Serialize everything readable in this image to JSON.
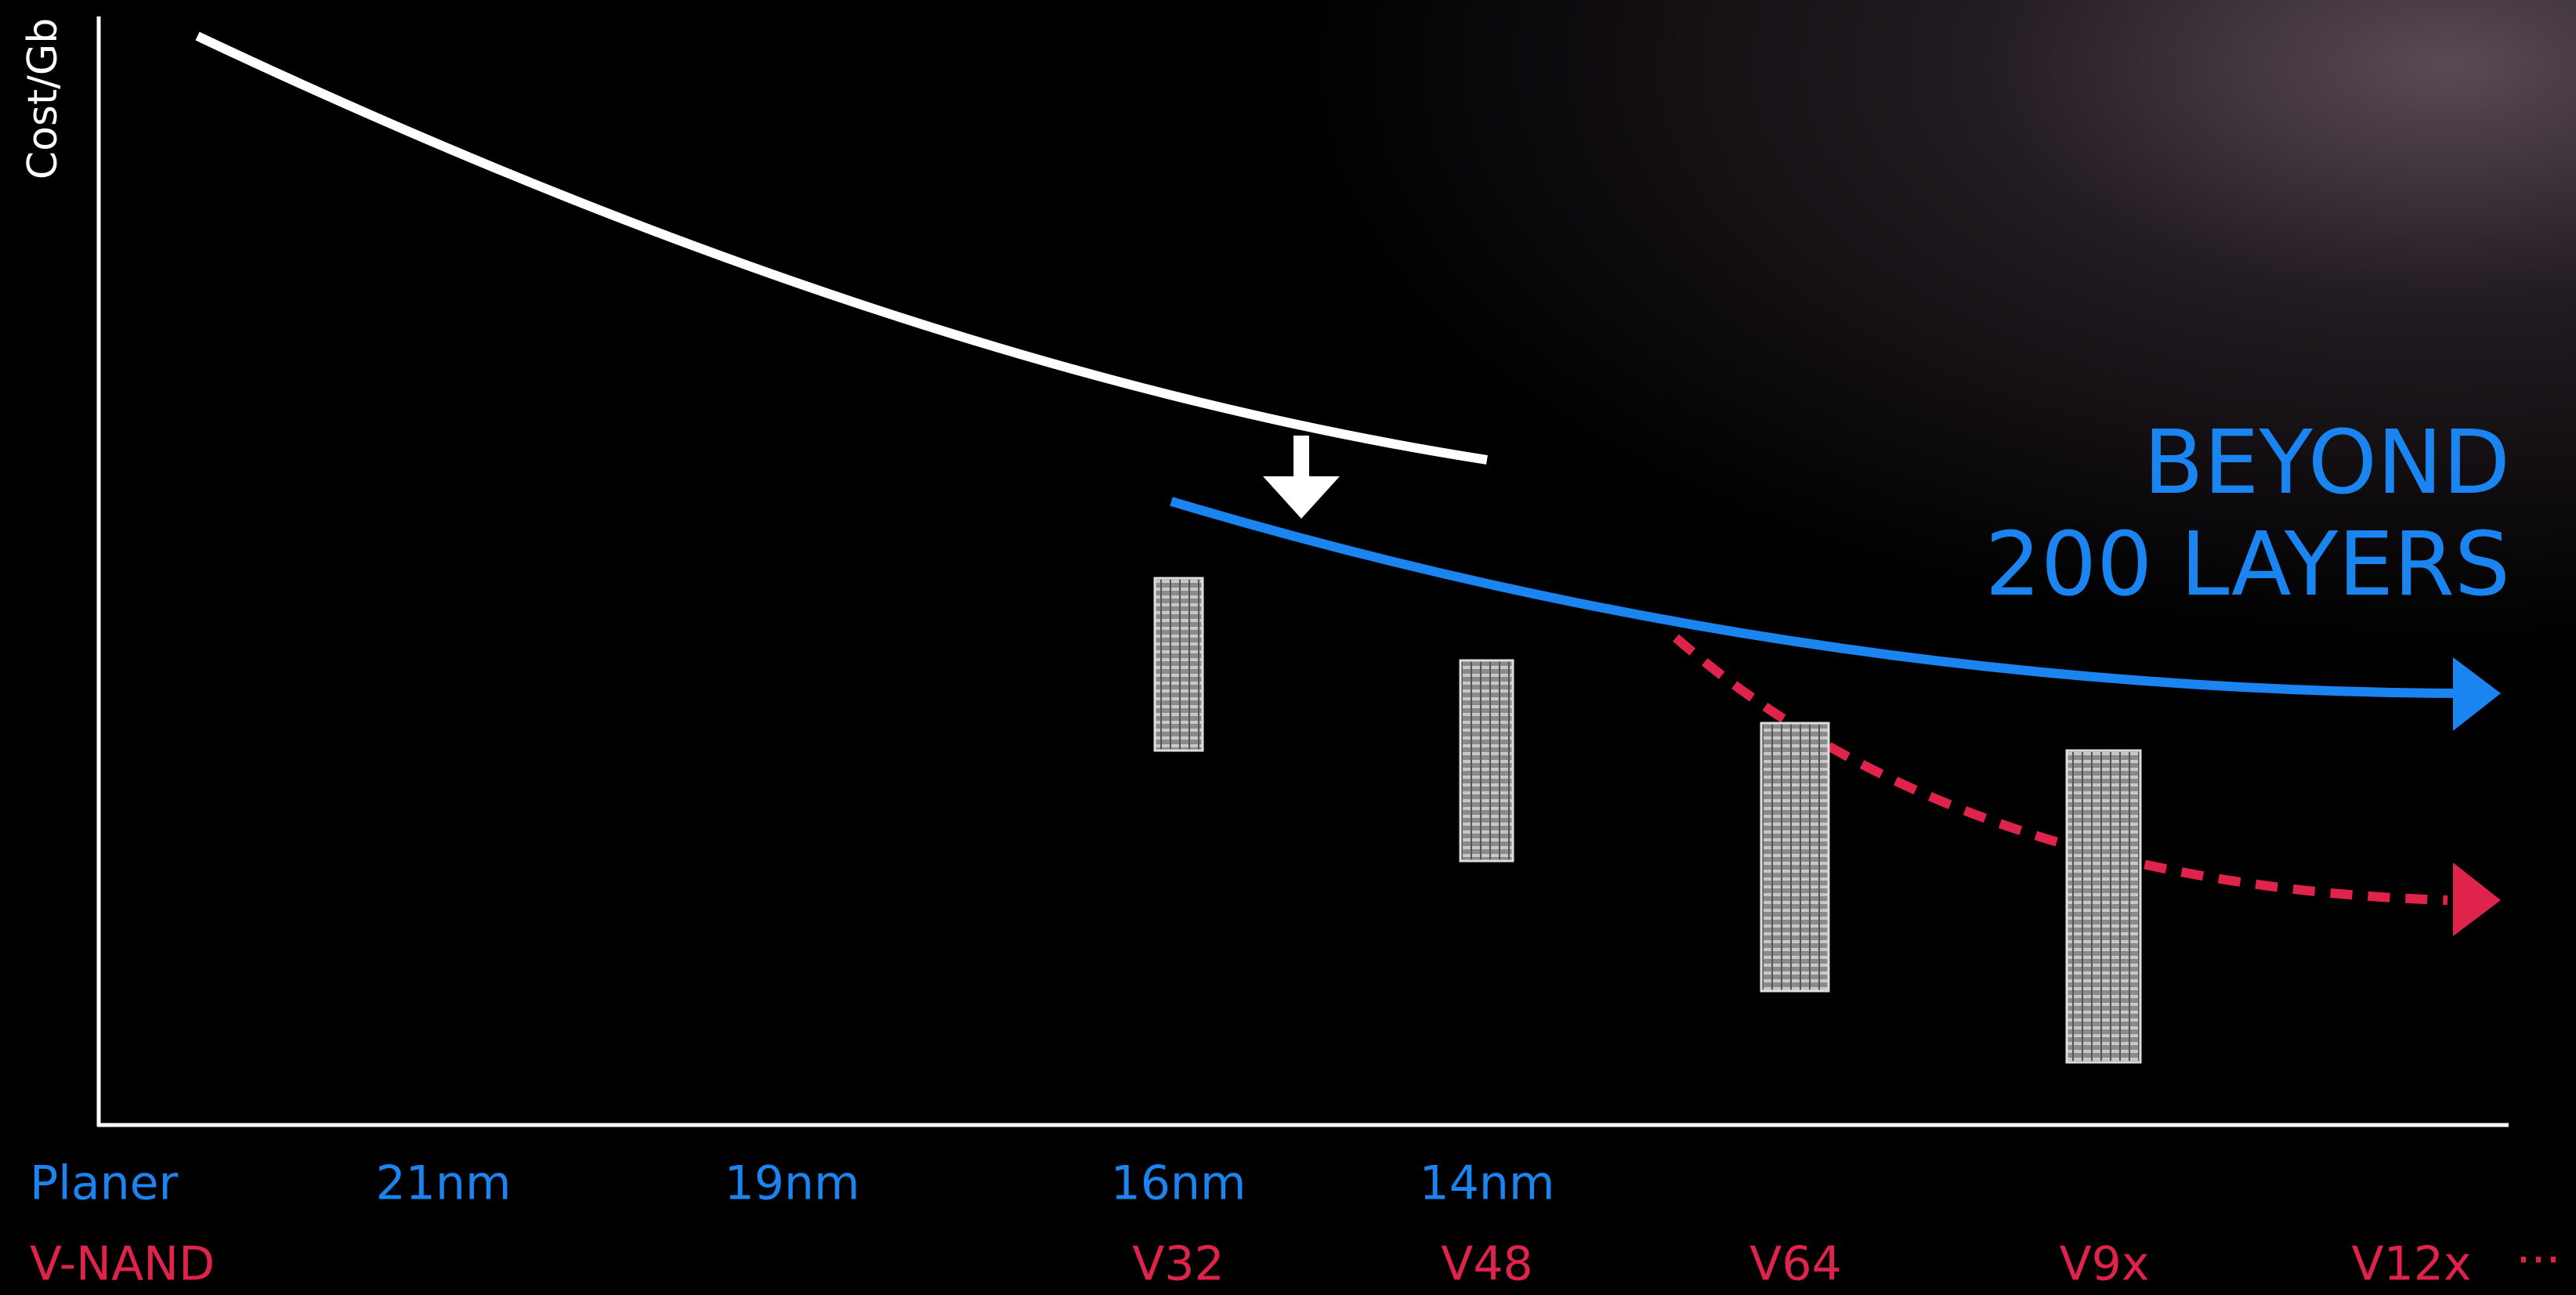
{
  "y_axis_label": "Cost/Gb",
  "callout": [
    "BEYOND",
    "200 LAYERS"
  ],
  "planar_row": {
    "label": "Planer",
    "nodes": [
      "21nm",
      "19nm",
      "16nm",
      "14nm"
    ]
  },
  "vnand_row": {
    "label": "V-NAND",
    "nodes": [
      "V32",
      "V48",
      "V64",
      "V9x",
      "V12x"
    ],
    "continuation": "···"
  }
}
